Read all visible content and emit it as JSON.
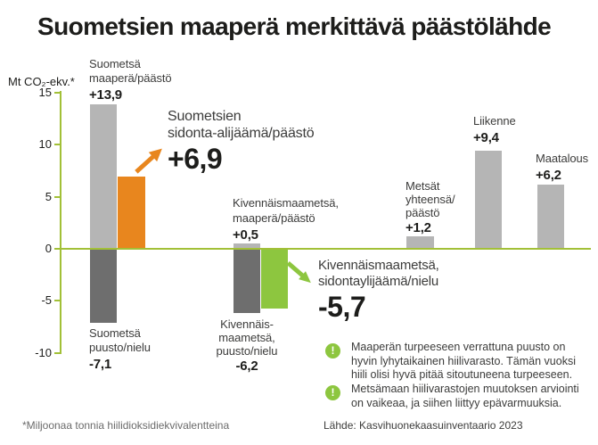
{
  "title": "Suometsien maaperä merkittävä päästölähde",
  "palette": {
    "light_gray": "#b5b5b5",
    "dark_gray": "#6e6e6e",
    "orange": "#e8861e",
    "green": "#8dc63f",
    "axis_green": "#a2c037"
  },
  "y_axis": {
    "unit_label": "Mt CO₂-ekv.*",
    "ticks": [
      "15",
      "10",
      "5",
      "0",
      "-5",
      "-10"
    ]
  },
  "chart_data": {
    "type": "bar",
    "title": "Suometsien maaperä merkittävä päästölähde",
    "ylabel": "Mt CO₂-ekv.*",
    "ylim": [
      -10,
      15
    ],
    "yticks": [
      15,
      10,
      5,
      0,
      -5,
      -10
    ],
    "grid": false,
    "bars": [
      {
        "name": "Suometsä maaperä/päästö",
        "label": "Suometsä\nmaaperä/päästö",
        "value": 13.9,
        "display": "+13,9",
        "color": "light_gray"
      },
      {
        "name": "Suometsä puusto/nielu",
        "label": "Suometsä\npuusto/nielu",
        "value": -7.1,
        "display": "-7,1",
        "color": "dark_gray"
      },
      {
        "name": "Suometsien sidonta-alijäämä/päästö",
        "label": "",
        "value": 6.9,
        "display": "+6,9",
        "color": "orange"
      },
      {
        "name": "Kivennäismaametsä maaperä/päästö",
        "label": "Kivennäismaametsä,\nmaaperä/päästö",
        "value": 0.5,
        "display": "+0,5",
        "color": "light_gray"
      },
      {
        "name": "Kivennäismaametsä puusto/nielu",
        "label": "Kivennäis-\nmaametsä,\npuusto/nielu",
        "value": -6.2,
        "display": "-6,2",
        "color": "dark_gray"
      },
      {
        "name": "Kivennäismaametsä sidontaylijäämä/nielu",
        "label": "",
        "value": -5.7,
        "display": "-5,7",
        "color": "green"
      },
      {
        "name": "Metsät yhteensä/päästö",
        "label": "Metsät\nyhteensä/\npäästö",
        "value": 1.2,
        "display": "+1,2",
        "color": "light_gray"
      },
      {
        "name": "Liikenne",
        "label": "Liikenne",
        "value": 9.4,
        "display": "+9,4",
        "color": "light_gray"
      },
      {
        "name": "Maatalous",
        "label": "Maatalous",
        "value": 6.2,
        "display": "+6,2",
        "color": "light_gray"
      }
    ]
  },
  "annotations": {
    "orange": {
      "label": "Suometsien\nsidonta-alijäämä/päästö"
    },
    "green": {
      "label": "Kivennäismaametsä,\nsidontaylijäämä/nielu"
    }
  },
  "notes": [
    "Maaperän turpeeseen verrattuna puusto on\nhyvin lyhytaikainen hiilivarasto. Tämän vuoksi\nhiili olisi hyvä pitää sitoutuneena turpeeseen.",
    "Metsämaan hiilivarastojen muutoksen arviointi\non vaikeaa, ja siihen liittyy epävarmuuksia."
  ],
  "notes_icon": "exclamation-mark",
  "footnote": "*Miljoonaa tonnia hiilidioksidiekvivalentteina",
  "source": "Lähde: Kasvihuonekaasuinventaario 2023"
}
